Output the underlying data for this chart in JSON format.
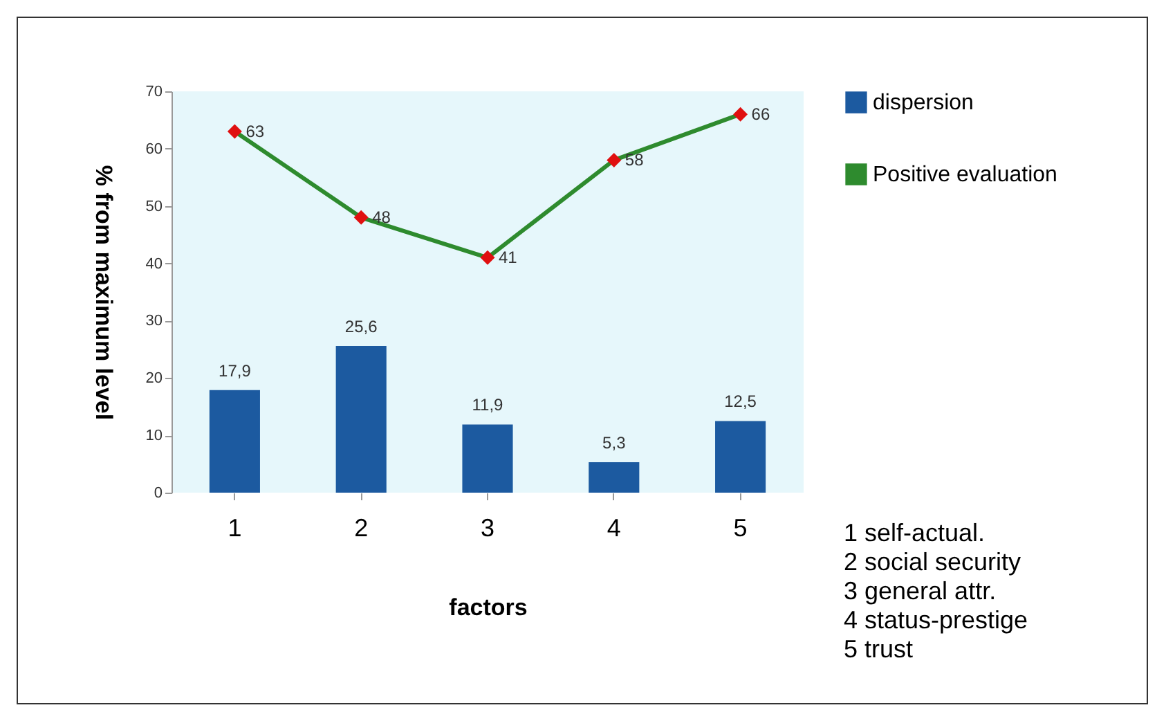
{
  "chart_data": {
    "type": "bar",
    "xlabel": "factors",
    "ylabel": "% from maximum level",
    "categories": [
      "1",
      "2",
      "3",
      "4",
      "5"
    ],
    "series": [
      {
        "name": "dispersion",
        "color": "#1c5aa0",
        "values": [
          17.9,
          25.6,
          11.9,
          5.3,
          12.5
        ],
        "value_labels": [
          "17,9",
          "25,6",
          "11,9",
          "5,3",
          "12,5"
        ]
      },
      {
        "name": "Positive evaluation",
        "type": "line",
        "color": "#2e8b2e",
        "values": [
          63,
          48,
          41,
          58,
          66
        ],
        "value_labels": [
          "63",
          "48",
          "41",
          "58",
          "66"
        ]
      }
    ],
    "ylim": [
      0,
      70
    ],
    "yticks": [
      0,
      10,
      20,
      30,
      40,
      50,
      60,
      70
    ],
    "legend": "right",
    "marker": "diamond",
    "annotations": [
      "1 self-actual.",
      "2 social security",
      "3 general attr.",
      "4 status-prestige",
      "5 trust"
    ]
  }
}
